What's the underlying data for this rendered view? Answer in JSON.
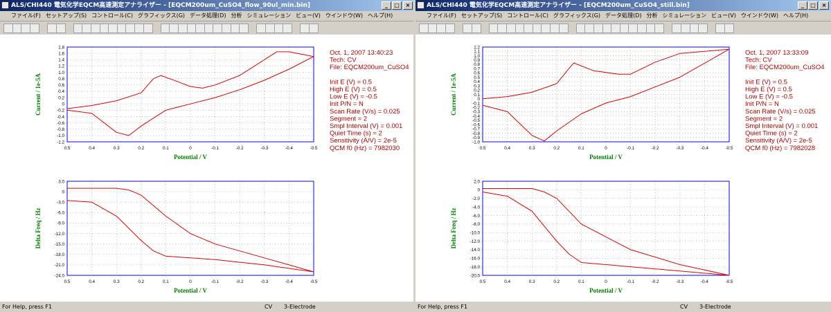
{
  "windows": [
    {
      "title": "ALS/CHI440 電気化学EQCM高速測定アナライザー - [EQCM200um_CuSO4_flow_90ul_min.bin]",
      "menu": [
        "ファイル(F)",
        "セットアップ(S)",
        "コントロール(C)",
        "グラフィックス(G)",
        "データ処理(D)",
        "分析",
        "シミュレーション",
        "ビュー(V)",
        "ウインドウ(W)",
        "ヘルプ(H)"
      ],
      "info": [
        "Oct. 1, 2007   13:40:23",
        "Tech: CV",
        "File: EQCM200um_CuSO4",
        "Init E (V) = 0.5",
        "High E (V) = 0.5",
        "Low E (V) = -0.5",
        "Init P/N = N",
        "Scan Rate (V/s) = 0.025",
        "Segment = 2",
        "Smpl Interval (V) = 0.001",
        "Quiet Time (s) = 2",
        "Sensitivity (A/V) = 2e-5",
        "QCM f0 (Hz) = 7982030"
      ],
      "charts": [
        {
          "type": "line",
          "xlabel": "Potential / V",
          "ylabel": "Current / 1e-5A",
          "color": "#e00000",
          "grid": true,
          "xlim": [
            0.5,
            -0.5
          ],
          "xticks": [
            0.5,
            0.4,
            0.3,
            0.2,
            0.1,
            0,
            -0.1,
            -0.2,
            -0.3,
            -0.4,
            -0.5
          ],
          "ylim": [
            -1.2,
            1.8
          ],
          "yticks": [
            1.8,
            1.6,
            1.4,
            1.2,
            {
              "value": 1,
              "label": "1.0"
            },
            0.8,
            0.6,
            0.4,
            0.2,
            0,
            -0.2,
            -0.4,
            -0.6,
            -0.8,
            {
              "value": -1,
              "label": "-1.0"
            },
            -1.2
          ],
          "x": [
            0.5,
            0.4,
            0.3,
            0.2,
            0.15,
            0.12,
            0.05,
            0,
            -0.05,
            -0.1,
            -0.2,
            -0.3,
            -0.35,
            -0.4,
            -0.5,
            -0.4,
            -0.3,
            -0.2,
            -0.1,
            0,
            0.1,
            0.2,
            0.25,
            0.3,
            0.4,
            0.5
          ],
          "y": [
            -0.15,
            -0.05,
            0.1,
            0.35,
            0.8,
            0.9,
            0.7,
            0.55,
            0.5,
            0.6,
            0.9,
            1.4,
            1.65,
            1.65,
            1.5,
            1.1,
            0.75,
            0.45,
            0.2,
            0,
            -0.2,
            -0.7,
            -1,
            -0.9,
            -0.3,
            -0.2
          ]
        },
        {
          "type": "line",
          "xlabel": "Potential / V",
          "ylabel": "Delta Freq / Hz",
          "color": "#e00000",
          "grid": true,
          "xlim": [
            0.5,
            -0.5
          ],
          "xticks": [
            0.5,
            0.4,
            0.3,
            0.2,
            0.1,
            0,
            -0.1,
            -0.2,
            -0.3,
            -0.4,
            -0.5
          ],
          "ylim": [
            -24,
            3
          ],
          "yticks": [
            {
              "value": 3,
              "label": "3.0"
            },
            0,
            {
              "value": -3,
              "label": "-3.0"
            },
            {
              "value": -6,
              "label": "-6.0"
            },
            {
              "value": -9,
              "label": "-9.0"
            },
            {
              "value": -12,
              "label": "-12.0"
            },
            {
              "value": -15,
              "label": "-15.0"
            },
            {
              "value": -18,
              "label": "-18.0"
            },
            {
              "value": -21,
              "label": "-21.0"
            },
            {
              "value": -24,
              "label": "-24.0"
            }
          ],
          "x": [
            0.5,
            0.4,
            0.3,
            0.25,
            0.2,
            0.15,
            0.1,
            0,
            -0.1,
            -0.3,
            -0.5,
            -0.3,
            -0.1,
            0,
            0.1,
            0.15,
            0.2,
            0.3,
            0.4,
            0.5
          ],
          "y": [
            1,
            1,
            1,
            0.5,
            -1,
            -4,
            -7,
            -12,
            -15,
            -19,
            -23,
            -21,
            -19.5,
            -19,
            -18.5,
            -17,
            -14,
            -7,
            -3,
            -2.5
          ]
        }
      ],
      "status": {
        "help": "For Help, press F1",
        "mode": "CV",
        "electrode": "3-Electrode"
      }
    },
    {
      "title": "ALS/CHI440 電気化学EQCM高速測定アナライザー - [EQCM200um_CuSO4_still.bin]",
      "menu": [
        "ファイル(F)",
        "セットアップ(S)",
        "コントロール(C)",
        "グラフィックス(G)",
        "データ処理(D)",
        "分析",
        "シミュレーション",
        "ビュー(V)",
        "ウインドウ(W)",
        "ヘルプ(H)"
      ],
      "info": [
        "Oct. 1, 2007   13:33:09",
        "Tech: CV",
        "File: EQCM200um_CuSO4",
        "Init E (V) = 0.5",
        "High E (V) = 0.5",
        "Low E (V) = -0.5",
        "Init P/N = N",
        "Scan Rate (V/s) = 0.025",
        "Segment = 2",
        "Smpl Interval (V) = 0.001",
        "Quiet Time (s) = 2",
        "Sensitivity (A/V) = 2e-5",
        "QCM f0 (Hz) = 7982028"
      ],
      "charts": [
        {
          "type": "line",
          "xlabel": "Potential / V",
          "ylabel": "Current / 1e-5A",
          "color": "#e00000",
          "grid": true,
          "xlim": [
            0.5,
            -0.5
          ],
          "xticks": [
            0.5,
            0.4,
            0.3,
            0.2,
            0.1,
            0,
            -0.1,
            -0.2,
            -0.3,
            -0.4,
            -0.5
          ],
          "ylim": [
            -1,
            1.2
          ],
          "yticks": [
            1.2,
            1.1,
            {
              "value": 1,
              "label": "1.0"
            },
            0.9,
            0.8,
            0.7,
            0.6,
            0.5,
            0.4,
            0.3,
            0.2,
            0.1,
            0,
            -0.1,
            -0.2,
            -0.3,
            -0.4,
            -0.5,
            -0.6,
            -0.7,
            -0.8,
            -0.9,
            {
              "value": -1,
              "label": "-1.0"
            }
          ],
          "x": [
            0.5,
            0.4,
            0.3,
            0.2,
            0.15,
            0.13,
            0.05,
            -0.05,
            -0.1,
            -0.2,
            -0.3,
            -0.5,
            -0.3,
            -0.1,
            0,
            0.1,
            0.2,
            0.25,
            0.3,
            0.4,
            0.5
          ],
          "y": [
            0,
            0.05,
            0.15,
            0.35,
            0.7,
            0.83,
            0.65,
            0.57,
            0.57,
            0.85,
            1.05,
            1.15,
            0.5,
            0.05,
            -0.1,
            -0.35,
            -0.75,
            -0.98,
            -0.85,
            -0.3,
            -0.15
          ]
        },
        {
          "type": "line",
          "xlabel": "Potential / V",
          "ylabel": "Delta Freq / Hz",
          "color": "#e00000",
          "grid": true,
          "xlim": [
            0.5,
            -0.5
          ],
          "xticks": [
            0.5,
            0.4,
            0.3,
            0.2,
            0.1,
            0,
            -0.1,
            -0.2,
            -0.3,
            -0.4,
            -0.5
          ],
          "ylim": [
            -20,
            2
          ],
          "yticks": [
            {
              "value": 2,
              "label": "2.0"
            },
            0,
            {
              "value": -2,
              "label": "-2.0"
            },
            {
              "value": -4,
              "label": "-4.0"
            },
            {
              "value": -6,
              "label": "-6.0"
            },
            {
              "value": -8,
              "label": "-8.0"
            },
            {
              "value": -10,
              "label": "-10.0"
            },
            {
              "value": -12,
              "label": "-12.0"
            },
            {
              "value": -14,
              "label": "-14.0"
            },
            {
              "value": -16,
              "label": "-16.0"
            },
            {
              "value": -18,
              "label": "-18.0"
            },
            {
              "value": -20,
              "label": "-20.0"
            }
          ],
          "x": [
            0.5,
            0.4,
            0.3,
            0.25,
            0.2,
            0.1,
            0,
            -0.1,
            -0.3,
            -0.5,
            -0.3,
            -0.1,
            0,
            0.1,
            0.15,
            0.2,
            0.3,
            0.4,
            0.5
          ],
          "y": [
            0.3,
            0.3,
            0.3,
            -0.5,
            -2,
            -8,
            -11,
            -14,
            -17.5,
            -20,
            -19,
            -18,
            -17.5,
            -17,
            -15,
            -12,
            -5,
            -1.5,
            -0.5
          ]
        }
      ],
      "status": {
        "help": "For Help, press F1",
        "mode": "CV",
        "electrode": "3-Electrode"
      }
    }
  ]
}
